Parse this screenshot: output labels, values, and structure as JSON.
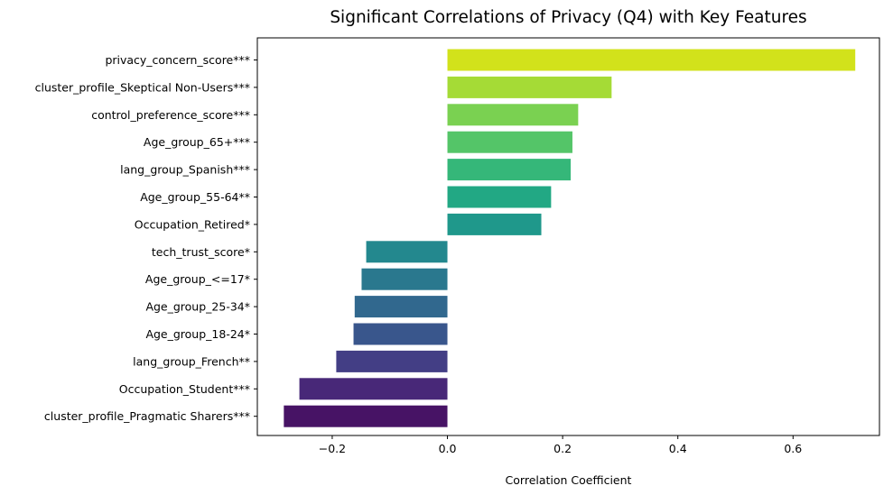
{
  "chart_data": {
    "type": "bar",
    "orientation": "horizontal",
    "title": "Significant Correlations of Privacy (Q4) with Key Features",
    "xlabel": "Correlation Coefficient",
    "ylabel": "",
    "xlim": [
      -0.33,
      0.75
    ],
    "x_ticks": [
      -0.2,
      0.0,
      0.2,
      0.4,
      0.6
    ],
    "x_tick_labels": [
      "−0.2",
      "0.0",
      "0.2",
      "0.4",
      "0.6"
    ],
    "grid": false,
    "colormap": "viridis",
    "categories": [
      "privacy_concern_score***",
      "cluster_profile_Skeptical Non-Users***",
      "control_preference_score***",
      "Age_group_65+***",
      "lang_group_Spanish***",
      "Age_group_55-64**",
      "Occupation_Retired*",
      "tech_trust_score*",
      "Age_group_<=17*",
      "Age_group_25-34*",
      "Age_group_18-24*",
      "lang_group_French**",
      "Occupation_Student***",
      "cluster_profile_Pragmatic Sharers***"
    ],
    "values": [
      0.708,
      0.285,
      0.227,
      0.217,
      0.214,
      0.18,
      0.163,
      -0.141,
      -0.149,
      -0.161,
      -0.163,
      -0.193,
      -0.257,
      -0.284
    ],
    "colors": [
      "#d2e21b",
      "#a5db36",
      "#7ad151",
      "#54c568",
      "#35b779",
      "#22a884",
      "#1f988b",
      "#23888e",
      "#2a788e",
      "#31688e",
      "#39568c",
      "#433e85",
      "#482878",
      "#471365"
    ]
  }
}
